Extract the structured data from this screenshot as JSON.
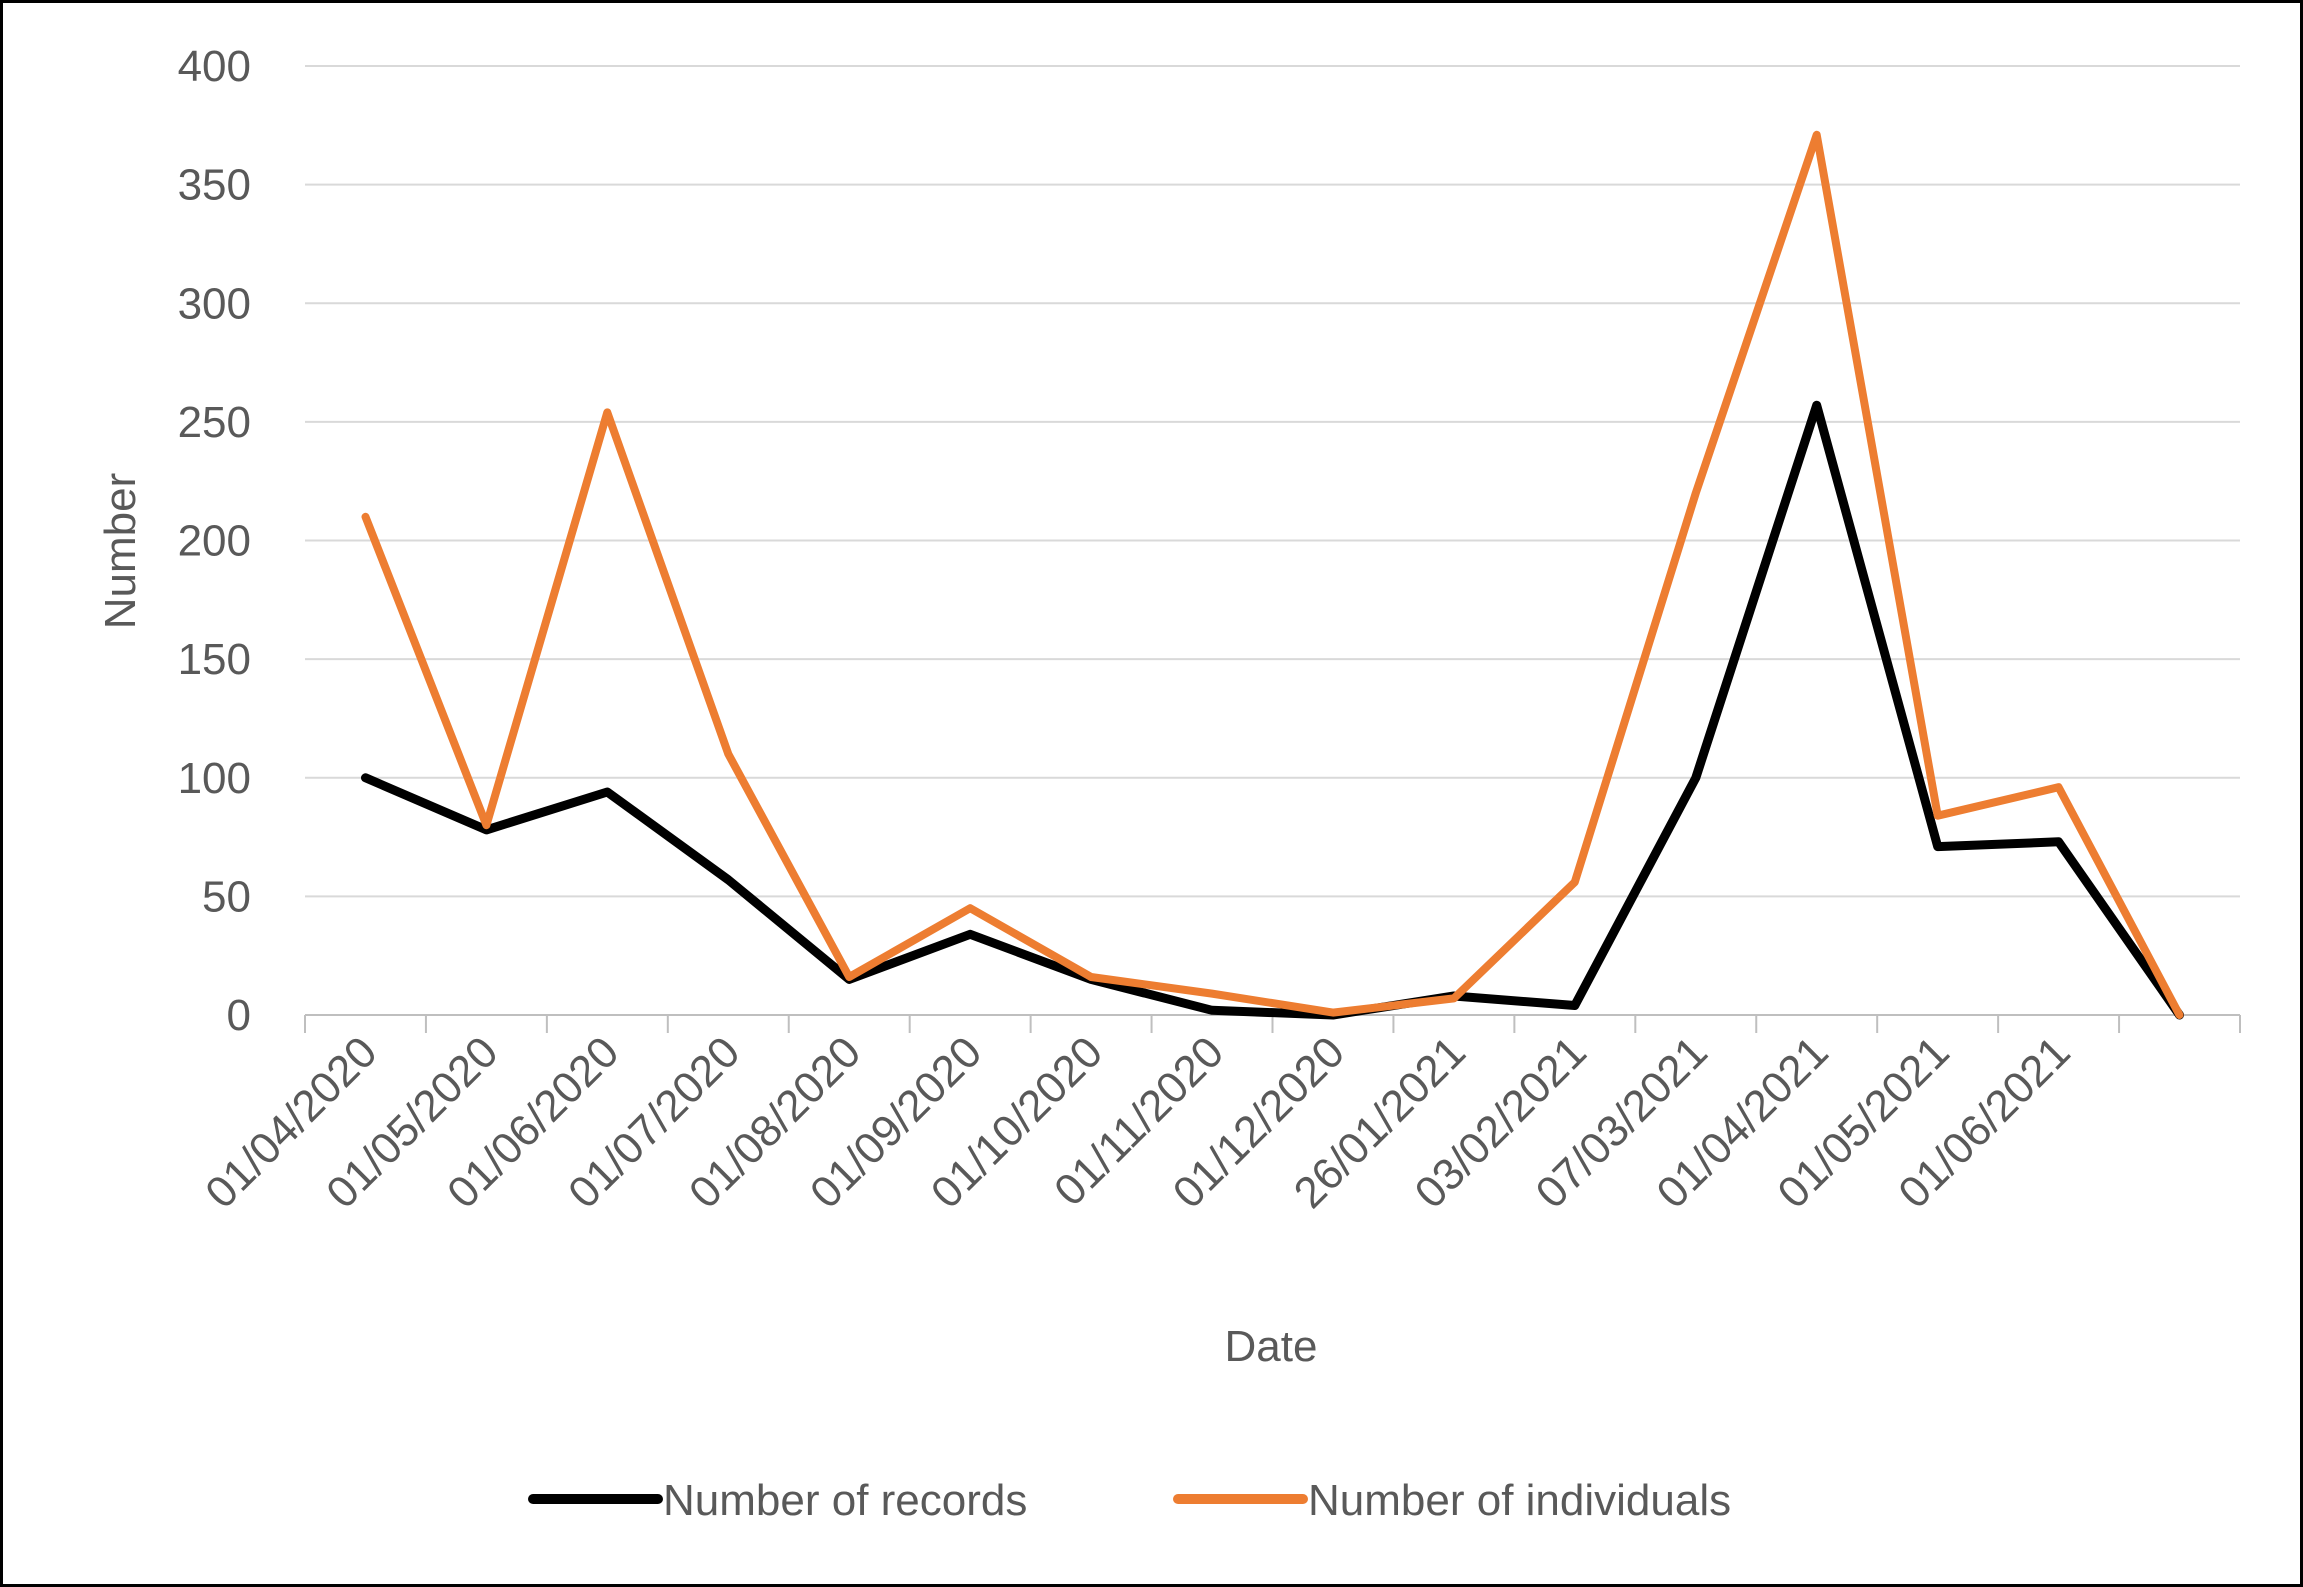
{
  "chart_data": {
    "type": "line",
    "xlabel": "Date",
    "ylabel": "Number",
    "ylim": [
      0,
      400
    ],
    "yticks": [
      0,
      50,
      100,
      150,
      200,
      250,
      300,
      350,
      400
    ],
    "grid": true,
    "legend": "bottom",
    "categories": [
      "01/04/2020",
      "01/05/2020",
      "01/06/2020",
      "01/07/2020",
      "01/08/2020",
      "01/09/2020",
      "01/10/2020",
      "01/11/2020",
      "01/12/2020",
      "26/01/2021",
      "03/02/2021",
      "07/03/2021",
      "01/04/2021",
      "01/05/2021",
      "01/06/2021",
      ""
    ],
    "series": [
      {
        "name": "Number of records",
        "color": "#000000",
        "values": [
          100,
          78,
          94,
          57,
          15,
          34,
          15,
          2,
          0,
          8,
          4,
          100,
          257,
          71,
          73,
          0
        ]
      },
      {
        "name": "Number of individuals",
        "color": "#ED7D31",
        "values": [
          210,
          80,
          254,
          110,
          16,
          45,
          16,
          9,
          1,
          7,
          56,
          220,
          371,
          84,
          96,
          0
        ]
      }
    ]
  }
}
